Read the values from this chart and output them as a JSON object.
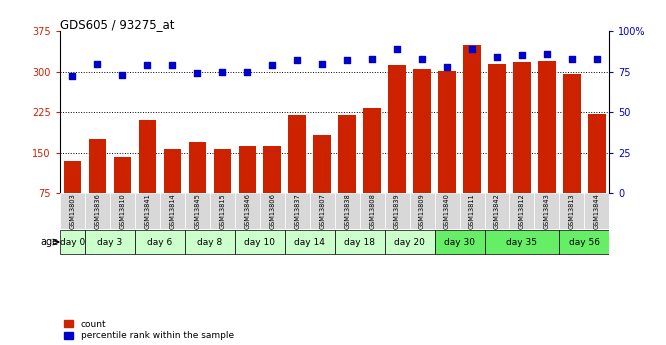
{
  "title": "GDS605 / 93275_at",
  "samples": [
    "GSM13803",
    "GSM13836",
    "GSM13810",
    "GSM13841",
    "GSM13814",
    "GSM13845",
    "GSM13815",
    "GSM13846",
    "GSM13806",
    "GSM13837",
    "GSM13807",
    "GSM13838",
    "GSM13808",
    "GSM13839",
    "GSM13809",
    "GSM13840",
    "GSM13811",
    "GSM13842",
    "GSM13812",
    "GSM13843",
    "GSM13813",
    "GSM13844"
  ],
  "counts": [
    135,
    175,
    143,
    210,
    157,
    170,
    157,
    163,
    162,
    220,
    182,
    220,
    233,
    313,
    305,
    302,
    350,
    315,
    318,
    320,
    295,
    222
  ],
  "percentiles": [
    72,
    80,
    73,
    79,
    79,
    74,
    75,
    75,
    79,
    82,
    80,
    82,
    83,
    89,
    83,
    78,
    89,
    84,
    85,
    86,
    83,
    83
  ],
  "age_groups": [
    {
      "label": "day 0",
      "start": 0,
      "end": 1,
      "color": "#ccffcc"
    },
    {
      "label": "day 3",
      "start": 1,
      "end": 3,
      "color": "#ccffcc"
    },
    {
      "label": "day 6",
      "start": 3,
      "end": 5,
      "color": "#ccffcc"
    },
    {
      "label": "day 8",
      "start": 5,
      "end": 7,
      "color": "#ccffcc"
    },
    {
      "label": "day 10",
      "start": 7,
      "end": 9,
      "color": "#ccffcc"
    },
    {
      "label": "day 14",
      "start": 9,
      "end": 11,
      "color": "#ccffcc"
    },
    {
      "label": "day 18",
      "start": 11,
      "end": 13,
      "color": "#ccffcc"
    },
    {
      "label": "day 20",
      "start": 13,
      "end": 15,
      "color": "#ccffcc"
    },
    {
      "label": "day 30",
      "start": 15,
      "end": 17,
      "color": "#66ee66"
    },
    {
      "label": "day 35",
      "start": 17,
      "end": 20,
      "color": "#66ee66"
    },
    {
      "label": "day 56",
      "start": 20,
      "end": 22,
      "color": "#66ee66"
    }
  ],
  "bar_color": "#cc2200",
  "dot_color": "#0000cc",
  "left_ylim": [
    75,
    375
  ],
  "left_yticks": [
    75,
    150,
    225,
    300,
    375
  ],
  "right_ylim": [
    0,
    100
  ],
  "right_yticks": [
    0,
    25,
    50,
    75,
    100
  ],
  "right_ytick_labels": [
    "0",
    "25",
    "50",
    "75",
    "100%"
  ],
  "grid_values": [
    150,
    225,
    300
  ],
  "background_color": "#ffffff",
  "sample_bg_color": "#d8d8d8",
  "legend_labels": [
    "count",
    "percentile rank within the sample"
  ]
}
